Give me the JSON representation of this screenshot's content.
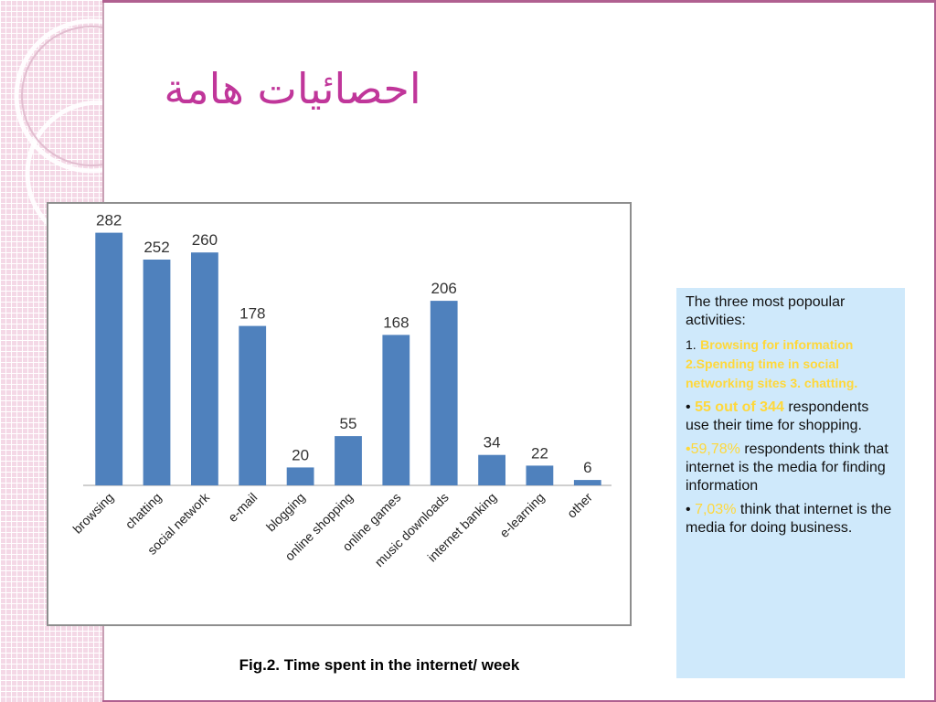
{
  "slide": {
    "title": "احصائيات هامة",
    "caption": "Fig.2. Time spent in the internet/ week"
  },
  "colors": {
    "bar": "#4f81bd",
    "title": "#c0369a",
    "highlight": "#ffd83a",
    "info_bg": "#cfe9fb",
    "band": "#f4d8e6"
  },
  "info": {
    "intro": "The three most popoular activities:",
    "item1_num": "1.",
    "item1_text": "Browsing for information 2.Spending time in social networking sites 3. chatting.",
    "item2_bullet": "•",
    "item2_highlight": "55 out of  344",
    "item2_text": "respondents use their time for shopping.",
    "item3_highlight": "•59,78%",
    "item3_text": "respondents think that internet is the media for finding information",
    "item4_bullet": "•",
    "item4_highlight": "7,03%",
    "item4_text": "think that internet is the media for doing business."
  },
  "chart_data": {
    "type": "bar",
    "categories": [
      "browsing",
      "chatting",
      "social network",
      "e-mail",
      "blogging",
      "online shopping",
      "online games",
      "music downloads",
      "internet banking",
      "e-learning",
      "other"
    ],
    "values": [
      282,
      252,
      260,
      178,
      20,
      55,
      168,
      206,
      34,
      22,
      6
    ],
    "title": "",
    "xlabel": "",
    "ylabel": "",
    "ylim": [
      0,
      300
    ],
    "grid": false,
    "legend": "none",
    "data_labels": true
  }
}
